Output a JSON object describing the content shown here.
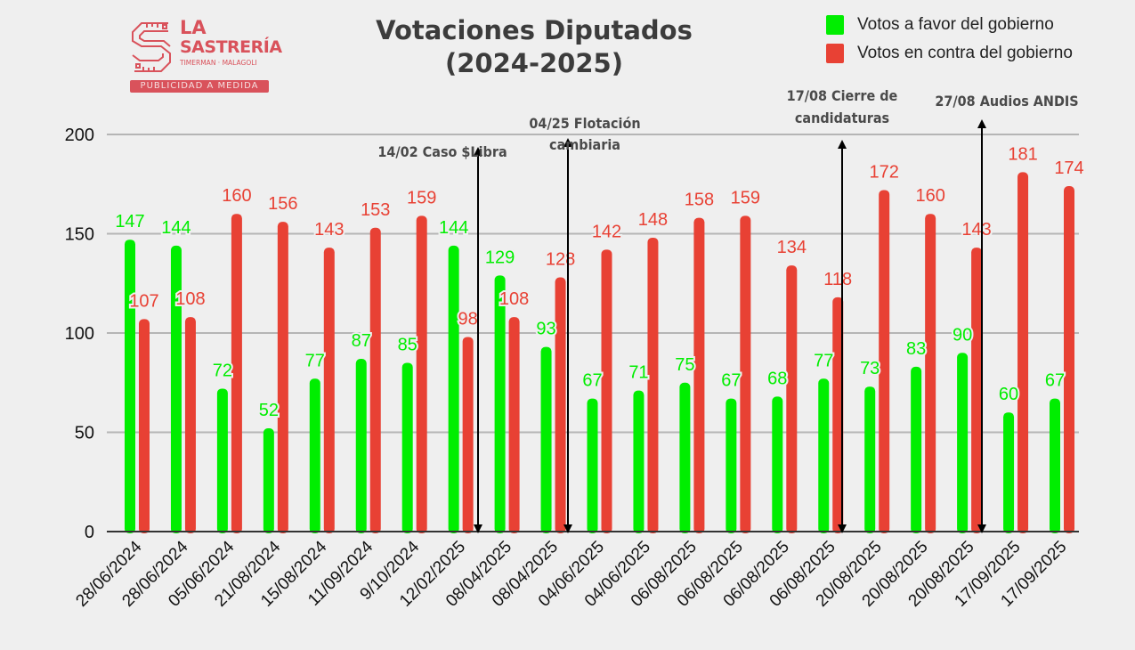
{
  "logo": {
    "line1": "LA",
    "line2": "SASTRERÍA",
    "line3": "TIMERMAN · MALAGOLI",
    "tagline": "PUBLICIDAD A MEDIDA"
  },
  "colors": {
    "favor": "#00ee00",
    "contra": "#e84134",
    "grid": "#b5b5b5",
    "background": "#efefef"
  },
  "chart_data": {
    "type": "bar",
    "title": "Votaciones Diputados\n(2024-2025)",
    "title_lines": [
      "Votaciones Diputados",
      "(2024-2025)"
    ],
    "xlabel": "",
    "ylabel": "",
    "ylim": [
      0,
      200
    ],
    "yticks": [
      0,
      50,
      100,
      150,
      200
    ],
    "grid": true,
    "legend_position": "top-right",
    "categories": [
      "28/06/2024",
      "28/06/2024",
      "05/06/2024",
      "21/08/2024",
      "15/08/2024",
      "11/09/2024",
      "9/10/2024",
      "12/02/2025",
      "08/04/2025",
      "08/04/2025",
      "04/06/2025",
      "04/06/2025",
      "06/08/2025",
      "06/08/2025",
      "06/08/2025",
      "06/08/2025",
      "20/08/2025",
      "20/08/2025",
      "20/08/2025",
      "17/09/2025",
      "17/09/2025"
    ],
    "series": [
      {
        "name": "Votos a favor del gobierno",
        "color": "#00ee00",
        "values": [
          147,
          144,
          72,
          52,
          77,
          87,
          85,
          144,
          129,
          93,
          67,
          71,
          75,
          67,
          68,
          77,
          73,
          83,
          90,
          60,
          67
        ]
      },
      {
        "name": "Votos en contra del gobierno",
        "color": "#e84134",
        "values": [
          107,
          108,
          160,
          156,
          143,
          153,
          159,
          98,
          108,
          128,
          142,
          148,
          158,
          159,
          134,
          118,
          172,
          160,
          143,
          181,
          174
        ]
      }
    ],
    "annotations": [
      {
        "lines": [
          "14/02 Caso $Libra"
        ],
        "after_index": 7
      },
      {
        "lines": [
          "04/25 Flotación",
          "cambiaria"
        ],
        "after_index": 9
      },
      {
        "lines": [
          "17/08 Cierre de",
          "candidaturas"
        ],
        "after_index": 15
      },
      {
        "lines": [
          "27/08 Audios ANDIS"
        ],
        "after_index": 18
      }
    ]
  }
}
